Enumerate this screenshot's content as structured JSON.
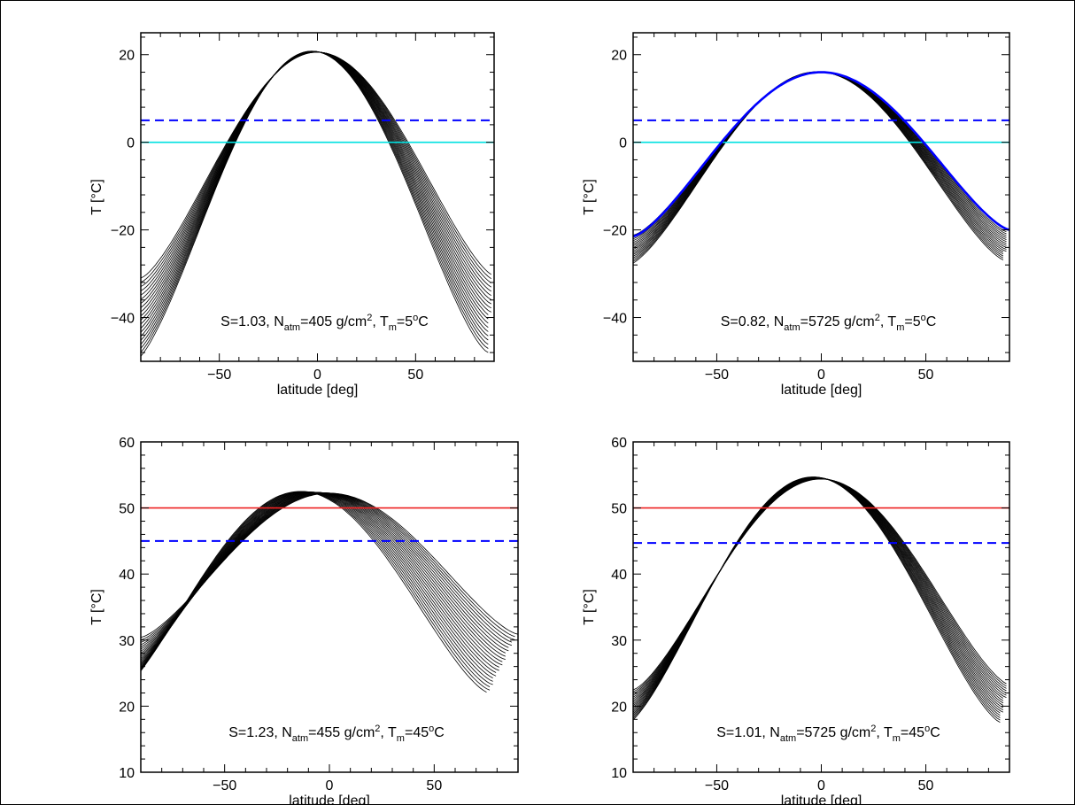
{
  "chart_data": [
    {
      "type": "line",
      "xlabel": "latitude [deg]",
      "ylabel": "T [°C]",
      "xlim": [
        -90,
        90
      ],
      "ylim": [
        -50,
        25
      ],
      "xticks": [
        -50,
        0,
        50
      ],
      "yticks": [
        -40,
        -20,
        0,
        20
      ],
      "annotation": {
        "S": "S=1.03",
        "N": "405",
        "T": "5"
      },
      "family": {
        "color": "#000000",
        "count": 40,
        "center_shift": [
          -3,
          3
        ],
        "peak": [
          20.8,
          20.3
        ],
        "edge_south": [
          -50,
          -11
        ],
        "edge_north": [
          -48,
          -12
        ]
      },
      "highlight": {
        "color": "#0000ff",
        "peak": 20.5,
        "center": 2,
        "edge_south": -32.5,
        "edge_north": -31
      },
      "hlines": [
        {
          "value": 5,
          "color": "#0000ff",
          "style": "dashed"
        },
        {
          "value": 0,
          "color": "#00e0e0",
          "style": "solid"
        }
      ]
    },
    {
      "type": "line",
      "xlabel": "latitude [deg]",
      "ylabel": "T [°C]",
      "xlim": [
        -90,
        90
      ],
      "ylim": [
        -50,
        25
      ],
      "xticks": [
        -50,
        0,
        50
      ],
      "yticks": [
        -40,
        -20,
        0,
        20
      ],
      "annotation": {
        "S": "S=0.82",
        "N": "5725",
        "T": "5"
      },
      "family": {
        "color": "#000000",
        "count": 34,
        "center_shift": [
          -2,
          2
        ],
        "peak": [
          16.1,
          15.8
        ],
        "edge_south": [
          -28,
          -14
        ],
        "edge_north": [
          -27,
          -13
        ]
      },
      "highlight": {
        "color": "#0000ff",
        "peak": 16,
        "center": 0,
        "edge_south": -21.5,
        "edge_north": -20
      },
      "hlines": [
        {
          "value": 5,
          "color": "#0000ff",
          "style": "dashed"
        },
        {
          "value": 0,
          "color": "#00e0e0",
          "style": "solid"
        }
      ]
    },
    {
      "type": "line",
      "xlabel": "latitude [deg]",
      "ylabel": "T [°C]",
      "xlim": [
        -90,
        90
      ],
      "ylim": [
        10,
        60
      ],
      "xticks": [
        -50,
        0,
        50
      ],
      "yticks": [
        10,
        20,
        30,
        40,
        50,
        60
      ],
      "annotation": {
        "S": "S=1.23",
        "N": "455",
        "T": "45"
      },
      "family": {
        "color": "#000000",
        "count": 40,
        "center_shift": [
          -14,
          12
        ],
        "peak": [
          52.5,
          52
        ],
        "edge_south": [
          21,
          38.5
        ],
        "edge_north": [
          22,
          38.5
        ]
      },
      "highlight": {
        "color": "#0000ff",
        "peak": 51.8,
        "center": 2,
        "edge_south": 29.8,
        "edge_north": 30.5
      },
      "hlines": [
        {
          "value": 50,
          "color": "#ee2222",
          "style": "solid"
        },
        {
          "value": 45,
          "color": "#0000ff",
          "style": "dashed"
        }
      ]
    },
    {
      "type": "line",
      "xlabel": "latitude [deg]",
      "ylabel": "T [°C]",
      "xlim": [
        -90,
        90
      ],
      "ylim": [
        10,
        60
      ],
      "xticks": [
        -50,
        0,
        50
      ],
      "yticks": [
        10,
        20,
        30,
        40,
        50,
        60
      ],
      "annotation": {
        "S": "S=1.01",
        "N": "5725",
        "T": "45"
      },
      "family": {
        "color": "#000000",
        "count": 34,
        "center_shift": [
          -4,
          3
        ],
        "peak": [
          54.7,
          54.1
        ],
        "edge_south": [
          17,
          27
        ],
        "edge_north": [
          17.5,
          28
        ]
      },
      "highlight": {
        "color": "#0000ff",
        "peak": 54.2,
        "center": 2,
        "edge_south": 22,
        "edge_north": 22.8
      },
      "hlines": [
        {
          "value": 50,
          "color": "#ee2222",
          "style": "solid"
        },
        {
          "value": 44.7,
          "color": "#0000ff",
          "style": "dashed"
        }
      ]
    }
  ]
}
